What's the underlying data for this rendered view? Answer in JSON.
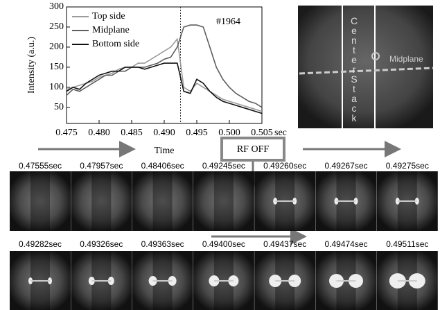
{
  "chart_data": {
    "type": "line",
    "x": [
      0.475,
      0.476,
      0.477,
      0.478,
      0.479,
      0.48,
      0.481,
      0.482,
      0.483,
      0.484,
      0.485,
      0.486,
      0.487,
      0.488,
      0.489,
      0.49,
      0.491,
      0.492,
      0.493,
      0.494,
      0.495,
      0.496,
      0.497,
      0.498,
      0.499,
      0.5,
      0.501,
      0.502,
      0.503,
      0.504,
      0.505
    ],
    "series": [
      {
        "name": "Top side",
        "color": "#9a9a9a",
        "values": [
          95,
          100,
          105,
          110,
          115,
          125,
          130,
          135,
          145,
          150,
          150,
          160,
          160,
          170,
          180,
          190,
          200,
          220,
          100,
          90,
          110,
          100,
          90,
          80,
          70,
          65,
          60,
          55,
          50,
          45,
          40
        ]
      },
      {
        "name": "Midplane",
        "color": "#5e5e5e",
        "values": [
          80,
          95,
          90,
          100,
          110,
          120,
          130,
          130,
          140,
          140,
          150,
          150,
          150,
          155,
          160,
          170,
          175,
          200,
          250,
          255,
          255,
          250,
          200,
          150,
          120,
          100,
          85,
          75,
          65,
          60,
          50
        ]
      },
      {
        "name": "Bottom side",
        "color": "#111111",
        "values": [
          90,
          100,
          95,
          110,
          120,
          130,
          135,
          140,
          140,
          150,
          150,
          150,
          145,
          150,
          155,
          160,
          160,
          160,
          90,
          85,
          120,
          110,
          90,
          75,
          65,
          60,
          55,
          50,
          45,
          40,
          35
        ]
      }
    ],
    "xlim": [
      0.475,
      0.505
    ],
    "ylim": [
      10,
      300
    ],
    "xticks": [
      0.475,
      {
        "value": 0.48,
        "label": "0.480"
      },
      0.485,
      {
        "value": 0.49,
        "label": "0.490"
      },
      0.495,
      {
        "value": 0.5,
        "label": "0.500"
      },
      0.505
    ],
    "x_unit": "sec",
    "yticks": [
      50,
      100,
      150,
      200,
      250,
      300
    ],
    "xlabel": "Time",
    "ylabel": "Intensity (a.u.)",
    "annotation": "#1964",
    "vline": 0.4925,
    "legend": "upper left"
  },
  "camera_view": {
    "stack_label": "CenterStack",
    "midplane_label": "Midplane"
  },
  "rf_off_label": "RF OFF",
  "frames": {
    "row1": [
      "0.47555sec",
      "0.47957sec",
      "0.48406sec",
      "0.49245sec",
      "0.49260sec",
      "0.49267sec",
      "0.49275sec"
    ],
    "row2": [
      "0.49282sec",
      "0.49326sec",
      "0.49363sec",
      "0.49400sec",
      "0.49437sec",
      "0.49474sec",
      "0.49511sec"
    ]
  }
}
